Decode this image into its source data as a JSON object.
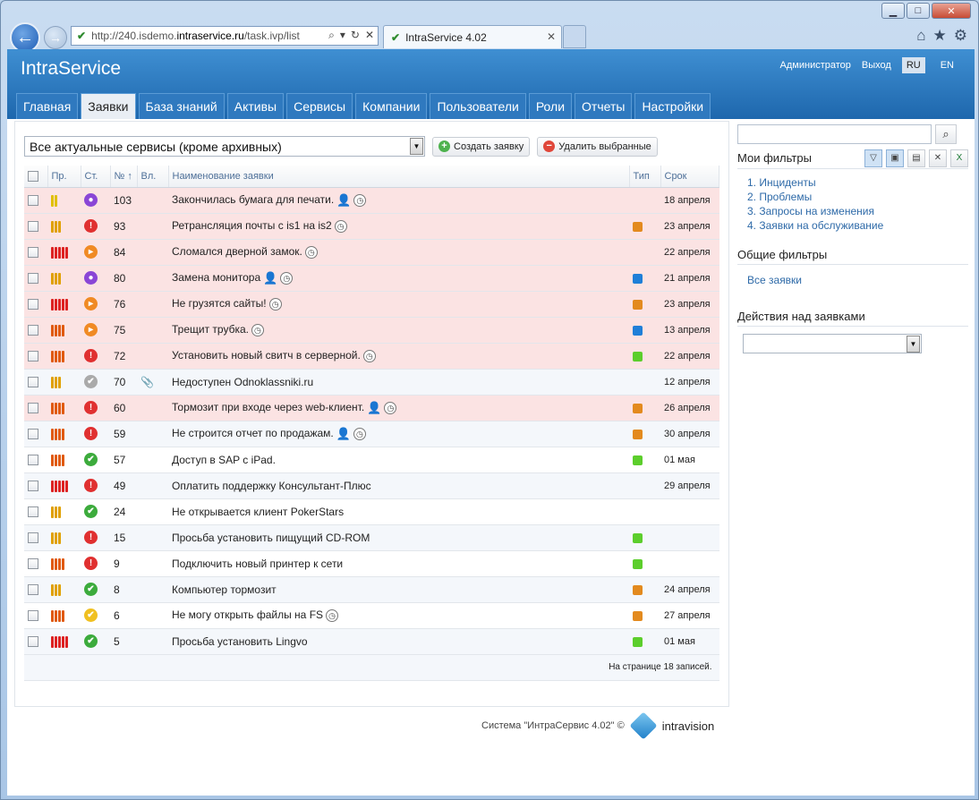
{
  "browser": {
    "url_prefix": "http://240.isdemo.",
    "url_host": "intraservice.ru",
    "url_path": "/task.ivp/list",
    "tab_title": "IntraService 4.02"
  },
  "header": {
    "brand": "IntraService",
    "admin": "Администратор",
    "logout": "Выход",
    "lang_ru": "RU",
    "lang_en": "EN"
  },
  "nav": [
    "Главная",
    "Заявки",
    "База знаний",
    "Активы",
    "Сервисы",
    "Компании",
    "Пользователи",
    "Роли",
    "Отчеты",
    "Настройки"
  ],
  "toolbar": {
    "filter_value": "Все актуальные сервисы (кроме архивных)",
    "create_label": "Создать заявку",
    "delete_label": "Удалить выбранные"
  },
  "columns": {
    "priority": "Пр.",
    "status": "Ст.",
    "number": "№ ↑",
    "attach": "Вл.",
    "name": "Наименование заявки",
    "type": "Тип",
    "deadline": "Срок"
  },
  "rows": [
    {
      "num": "103",
      "name": "Закончилась бумага для печати.",
      "date": "18 апреля"
    },
    {
      "num": "93",
      "name": "Ретрансляция почты с is1 на is2",
      "date": "23 апреля"
    },
    {
      "num": "84",
      "name": "Сломался дверной замок.",
      "date": "22 апреля"
    },
    {
      "num": "80",
      "name": "Замена монитора",
      "date": "21 апреля"
    },
    {
      "num": "76",
      "name": "Не грузятся сайты!",
      "date": "23 апреля"
    },
    {
      "num": "75",
      "name": "Трещит трубка.",
      "date": "13 апреля"
    },
    {
      "num": "72",
      "name": "Установить новый свитч в серверной.",
      "date": "22 апреля"
    },
    {
      "num": "70",
      "name": "Недоступен Odnoklassniki.ru",
      "date": "12 апреля"
    },
    {
      "num": "60",
      "name": "Тормозит при входе через web-клиент.",
      "date": "26 апреля"
    },
    {
      "num": "59",
      "name": "Не строится отчет по продажам.",
      "date": "30 апреля"
    },
    {
      "num": "57",
      "name": "Доступ в SAP с iPad.",
      "date": "01 мая"
    },
    {
      "num": "49",
      "name": "Оплатить поддержку Консультант-Плюс",
      "date": "29 апреля"
    },
    {
      "num": "24",
      "name": "Не открывается клиент PokerStars",
      "date": ""
    },
    {
      "num": "15",
      "name": "Просьба установить пищущий CD-ROM",
      "date": ""
    },
    {
      "num": "9",
      "name": "Подключить новый принтер к сети",
      "date": ""
    },
    {
      "num": "8",
      "name": "Компьютер тормозит",
      "date": "24 апреля"
    },
    {
      "num": "6",
      "name": "Не могу открыть файлы на FS",
      "date": "27 апреля"
    },
    {
      "num": "5",
      "name": "Просьба установить Lingvo",
      "date": "01 мая"
    }
  ],
  "table_footer": "На странице 18 записей.",
  "footer": {
    "copyright": "Система \"ИнтраСервис 4.02\" ©",
    "logo": "intravision"
  },
  "sidebar": {
    "my_filters_title": "Мои фильтры",
    "my_filters": [
      "1. Инциденты",
      "2. Проблемы",
      "3. Запросы на изменения",
      "4. Заявки на обслуживание"
    ],
    "common_title": "Общие фильтры",
    "all_link": "Все заявки",
    "actions_title": "Действия над заявками"
  }
}
